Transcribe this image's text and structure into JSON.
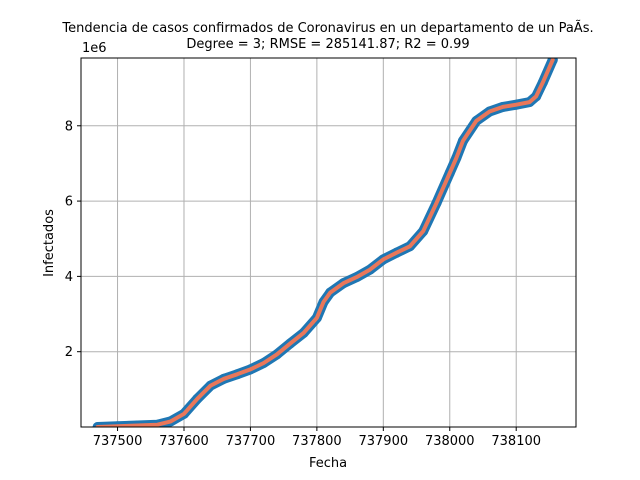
{
  "chart_data": {
    "type": "line",
    "title": "Tendencia de casos confirmados de Coronavirus en un departamento de un PaÃ­s.",
    "subtitle": "Degree = 3; RMSE = 285141.87; R2 = 0.99",
    "xlabel": "Fecha",
    "ylabel": "Infectados",
    "y_offset_label": "1e6",
    "xlim": [
      737445,
      738190
    ],
    "ylim": [
      0,
      9.8
    ],
    "xticks": [
      737500,
      737600,
      737700,
      737800,
      737900,
      738000,
      738100
    ],
    "xtick_labels": [
      "737500",
      "737600",
      "737700",
      "737800",
      "737900",
      "738000",
      "738100"
    ],
    "yticks": [
      2,
      4,
      6,
      8
    ],
    "ytick_labels": [
      "2",
      "4",
      "6",
      "8"
    ],
    "grid": true,
    "colors": {
      "data": "#1f77b4",
      "fit": "#e9775a"
    },
    "series": [
      {
        "style": "data-markers",
        "x": [
          737470,
          737500,
          737530,
          737560,
          737580,
          737600,
          737620,
          737640,
          737660,
          737680,
          737700,
          737720,
          737740,
          737760,
          737780,
          737800,
          737810,
          737820,
          737840,
          737860,
          737880,
          737900,
          737920,
          737940,
          737960,
          737980,
          738000,
          738010,
          738020,
          738040,
          738060,
          738080,
          738100,
          738120,
          738130,
          738140,
          738155
        ],
        "y": [
          0.0,
          0.02,
          0.04,
          0.06,
          0.15,
          0.35,
          0.75,
          1.1,
          1.28,
          1.4,
          1.53,
          1.7,
          1.93,
          2.22,
          2.5,
          2.9,
          3.32,
          3.57,
          3.82,
          3.98,
          4.18,
          4.45,
          4.63,
          4.8,
          5.2,
          5.95,
          6.75,
          7.15,
          7.6,
          8.13,
          8.38,
          8.5,
          8.56,
          8.63,
          8.78,
          9.15,
          9.75
        ]
      },
      {
        "style": "fit-line",
        "x": [
          737470,
          737500,
          737530,
          737560,
          737580,
          737600,
          737620,
          737640,
          737660,
          737680,
          737700,
          737720,
          737740,
          737760,
          737780,
          737800,
          737810,
          737820,
          737840,
          737860,
          737880,
          737900,
          737920,
          737940,
          737960,
          737980,
          738000,
          738010,
          738020,
          738040,
          738060,
          738080,
          738100,
          738120,
          738130,
          738140,
          738155
        ],
        "y": [
          0.0,
          0.02,
          0.04,
          0.06,
          0.15,
          0.35,
          0.75,
          1.1,
          1.28,
          1.4,
          1.53,
          1.7,
          1.93,
          2.22,
          2.5,
          2.9,
          3.32,
          3.57,
          3.82,
          3.98,
          4.18,
          4.45,
          4.63,
          4.8,
          5.2,
          5.95,
          6.75,
          7.15,
          7.6,
          8.13,
          8.38,
          8.5,
          8.56,
          8.63,
          8.78,
          9.15,
          9.75
        ]
      }
    ]
  }
}
